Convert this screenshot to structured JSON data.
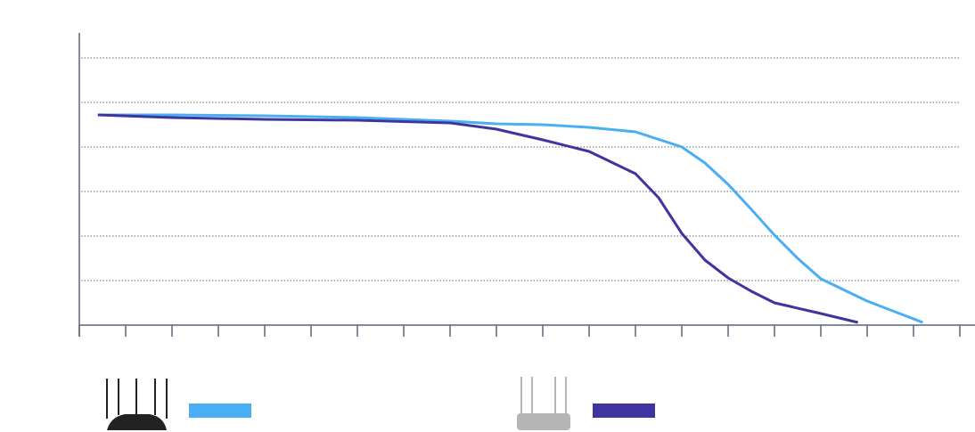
{
  "chart_data": {
    "type": "line",
    "xlim": [
      0,
      19
    ],
    "xticks": [
      0,
      1,
      2,
      3,
      4,
      5,
      6,
      7,
      8,
      9,
      10,
      11,
      12,
      13,
      14,
      15,
      16,
      17,
      18,
      19
    ],
    "ylim": [
      0,
      6.6
    ],
    "yticks": [
      1,
      2,
      3,
      4,
      5,
      6
    ],
    "grid": true,
    "series": [
      {
        "color": "#4aaef5",
        "x": [
          0.4,
          2,
          4,
          6,
          8,
          9,
          10,
          11,
          12,
          13,
          13.5,
          14,
          14.5,
          15,
          15.5,
          16,
          17,
          18.2
        ],
        "values": [
          4.72,
          4.72,
          4.7,
          4.66,
          4.58,
          4.52,
          4.5,
          4.44,
          4.34,
          4.0,
          3.64,
          3.16,
          2.6,
          2.02,
          1.5,
          1.04,
          0.54,
          0.06
        ]
      },
      {
        "color": "#3f35a0",
        "x": [
          0.4,
          2,
          4,
          6,
          8,
          9,
          10,
          11,
          12,
          12.5,
          13,
          13.5,
          14,
          14.5,
          15,
          16,
          16.8
        ],
        "values": [
          4.72,
          4.66,
          4.62,
          4.6,
          4.54,
          4.4,
          4.16,
          3.9,
          3.4,
          2.86,
          2.06,
          1.46,
          1.06,
          0.76,
          0.5,
          0.26,
          0.06
        ]
      }
    ]
  }
}
